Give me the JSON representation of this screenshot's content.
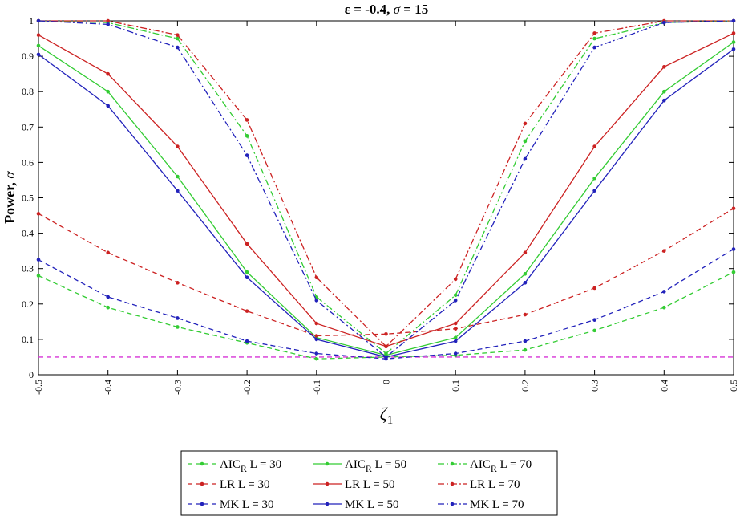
{
  "chart_data": {
    "type": "line",
    "title": "ε = -0.4, σ = 15",
    "title_parts": {
      "eps": "ε",
      "eps_rest": " = -0.4, ",
      "sigma": "σ",
      "sigma_rest": " = 15"
    },
    "xlabel": "ζ",
    "xlabel_sub": "1",
    "ylabel": "Power, ",
    "ylabel_symbol": "α",
    "xlim": [
      -0.5,
      0.5
    ],
    "ylim": [
      0,
      1
    ],
    "x": [
      -0.5,
      -0.4,
      -0.3,
      -0.2,
      -0.1,
      0,
      0.1,
      0.2,
      0.3,
      0.4,
      0.5
    ],
    "x_ticks": [
      "-0.5",
      "-0.4",
      "-0.3",
      "-0.2",
      "-0.1",
      "0",
      "0.1",
      "0.2",
      "0.3",
      "0.4",
      "0.5"
    ],
    "y_ticks": [
      "0",
      "0.1",
      "0.2",
      "0.3",
      "0.4",
      "0.5",
      "0.6",
      "0.7",
      "0.8",
      "0.9",
      "1"
    ],
    "grid": false,
    "legend_position": "bottom-center",
    "reference_line": {
      "y": 0.05,
      "color": "#d633d6",
      "style": "dashed"
    },
    "series": [
      {
        "name": "AIC_R L = 30",
        "label_main": "AIC",
        "label_sub": "R",
        "label_tail": " L = 30",
        "color": "#33cc33",
        "style": "dashed",
        "values": [
          0.28,
          0.19,
          0.135,
          0.09,
          0.045,
          0.05,
          0.055,
          0.07,
          0.125,
          0.19,
          0.29
        ]
      },
      {
        "name": "AIC_R L = 50",
        "label_main": "AIC",
        "label_sub": "R",
        "label_tail": " L = 50",
        "color": "#33cc33",
        "style": "solid",
        "values": [
          0.93,
          0.8,
          0.56,
          0.29,
          0.105,
          0.055,
          0.105,
          0.285,
          0.555,
          0.8,
          0.94
        ]
      },
      {
        "name": "AIC_R L = 70",
        "label_main": "AIC",
        "label_sub": "R",
        "label_tail": " L = 70",
        "color": "#33cc33",
        "style": "dashdot",
        "values": [
          1.0,
          0.995,
          0.95,
          0.675,
          0.22,
          0.06,
          0.225,
          0.66,
          0.95,
          0.995,
          1.0
        ]
      },
      {
        "name": "LR L = 30",
        "label_main": "LR",
        "label_sub": "",
        "label_tail": "    L = 30",
        "color": "#cc2222",
        "style": "dashed",
        "values": [
          0.455,
          0.345,
          0.26,
          0.18,
          0.11,
          0.115,
          0.13,
          0.17,
          0.245,
          0.35,
          0.47
        ]
      },
      {
        "name": "LR L = 50",
        "label_main": "LR",
        "label_sub": "",
        "label_tail": "    L = 50",
        "color": "#cc2222",
        "style": "solid",
        "values": [
          0.96,
          0.85,
          0.645,
          0.37,
          0.145,
          0.08,
          0.145,
          0.345,
          0.645,
          0.87,
          0.965
        ]
      },
      {
        "name": "LR L = 70",
        "label_main": "LR",
        "label_sub": "",
        "label_tail": "    L = 70",
        "color": "#cc2222",
        "style": "dashdot",
        "values": [
          1.0,
          1.0,
          0.96,
          0.72,
          0.275,
          0.08,
          0.27,
          0.71,
          0.965,
          1.0,
          1.0
        ]
      },
      {
        "name": "MK L = 30",
        "label_main": "MK",
        "label_sub": "",
        "label_tail": "   L = 30",
        "color": "#2222bb",
        "style": "dashed",
        "values": [
          0.325,
          0.22,
          0.16,
          0.095,
          0.06,
          0.045,
          0.06,
          0.095,
          0.155,
          0.235,
          0.355
        ]
      },
      {
        "name": "MK L = 50",
        "label_main": "MK",
        "label_sub": "",
        "label_tail": "   L = 50",
        "color": "#2222bb",
        "style": "solid",
        "values": [
          0.905,
          0.76,
          0.52,
          0.275,
          0.1,
          0.05,
          0.095,
          0.26,
          0.52,
          0.775,
          0.92
        ]
      },
      {
        "name": "MK L = 70",
        "label_main": "MK",
        "label_sub": "",
        "label_tail": "   L = 70",
        "color": "#2222bb",
        "style": "dashdot",
        "values": [
          1.0,
          0.99,
          0.925,
          0.62,
          0.21,
          0.05,
          0.21,
          0.61,
          0.925,
          0.995,
          1.0
        ]
      }
    ]
  }
}
